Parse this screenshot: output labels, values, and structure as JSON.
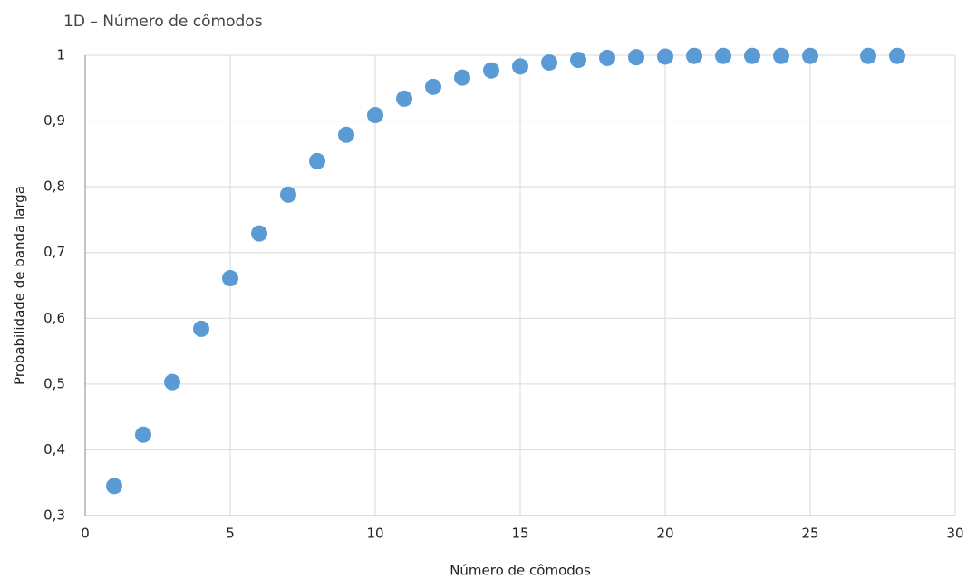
{
  "chart_data": {
    "type": "scatter",
    "title": "1D – Número de cômodos",
    "x_label": "Número de cômodos",
    "y_label": "Probabilidade de banda larga",
    "x": [
      1,
      2,
      3,
      4,
      5,
      6,
      7,
      8,
      9,
      10,
      11,
      12,
      13,
      14,
      15,
      16,
      17,
      18,
      19,
      20,
      21,
      22,
      23,
      24,
      25,
      27,
      28
    ],
    "values": [
      0.345,
      0.423,
      0.503,
      0.584,
      0.661,
      0.729,
      0.788,
      0.839,
      0.879,
      0.909,
      0.934,
      0.952,
      0.966,
      0.977,
      0.983,
      0.989,
      0.993,
      0.996,
      0.997,
      0.998,
      0.999,
      0.999,
      0.999,
      0.999,
      0.999,
      0.999,
      0.999
    ],
    "color": "#5b9bd5",
    "xlim": [
      0,
      30
    ],
    "ylim": [
      0.3,
      1
    ],
    "xticks": [
      0,
      5,
      10,
      15,
      20,
      25,
      30
    ],
    "yticks": [
      {
        "value": 0.3,
        "label": "0,3"
      },
      {
        "value": 0.4,
        "label": "0,4"
      },
      {
        "value": 0.5,
        "label": "0,5"
      },
      {
        "value": 0.6,
        "label": "0,6"
      },
      {
        "value": 0.7,
        "label": "0,7"
      },
      {
        "value": 0.8,
        "label": "0,8"
      },
      {
        "value": 0.9,
        "label": "0,9"
      },
      1
    ],
    "grid": true
  }
}
